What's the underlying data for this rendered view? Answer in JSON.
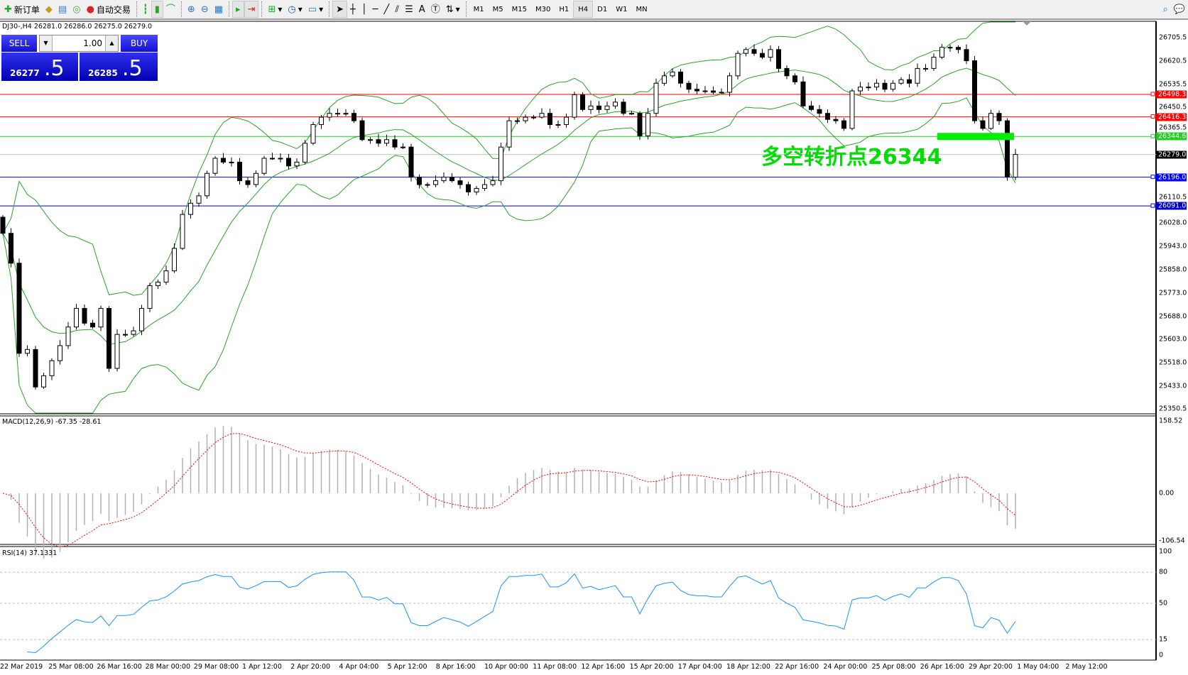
{
  "toolbar": {
    "new_order": "新订单",
    "auto_trading": "自动交易",
    "timeframes": [
      "M1",
      "M5",
      "M15",
      "M30",
      "H1",
      "H4",
      "D1",
      "W1",
      "MN"
    ],
    "active_timeframe": "H4",
    "text_tool": "A"
  },
  "chart": {
    "title": "DJ30-,H4  26281.0 26286.0 26275.0 26279.0",
    "annotation": "多空转折点26344",
    "annotation_color": "#00dd00",
    "one_click": {
      "sell": "SELL",
      "buy": "BUY",
      "lot": "1.00",
      "sell_main": "26277",
      "sell_big": ".5",
      "buy_main": "26285",
      "buy_big": ".5"
    },
    "price_ticks": [
      "26705.5",
      "26620.5",
      "26535.5",
      "26450.5",
      "26365.5",
      "26110.5",
      "26028.0",
      "25943.0",
      "25858.0",
      "25773.0",
      "25688.0",
      "25603.0",
      "25518.0",
      "25433.0",
      "25350.5"
    ],
    "levels": [
      {
        "price": "26498.3",
        "color": "#ff0000"
      },
      {
        "price": "26416.3",
        "color": "#ff0000"
      },
      {
        "price": "26344.6",
        "color": "#22cc22"
      },
      {
        "price": "26279.0",
        "color": "#000000",
        "line": "#c0c0c0"
      },
      {
        "price": "26196.0",
        "color": "#0000ff"
      },
      {
        "price": "26091.0",
        "color": "#0000cc"
      }
    ],
    "time_ticks": [
      "22 Mar 2019",
      "25 Mar 08:00",
      "26 Mar 16:00",
      "28 Mar 00:00",
      "29 Mar 08:00",
      "1 Apr 12:00",
      "2 Apr 20:00",
      "4 Apr 04:00",
      "5 Apr 12:00",
      "8 Apr 16:00",
      "10 Apr 00:00",
      "11 Apr 08:00",
      "12 Apr 16:00",
      "15 Apr 20:00",
      "17 Apr 04:00",
      "18 Apr 12:00",
      "22 Apr 16:00",
      "24 Apr 00:00",
      "25 Apr 08:00",
      "26 Apr 16:00",
      "29 Apr 20:00",
      "1 May 04:00",
      "2 May 12:00"
    ]
  },
  "macd": {
    "title": "MACD(12,26,9) -67.35 -28.61",
    "ticks": [
      "158.52",
      "0.00",
      "-106.54"
    ]
  },
  "rsi": {
    "title": "RSI(14) 37.1331",
    "ticks": [
      "100",
      "80",
      "50",
      "15",
      "0"
    ],
    "color": "#1e90ff"
  },
  "chart_data": {
    "type": "candlestick",
    "symbol": "DJ30-",
    "timeframe": "H4",
    "ylim": [
      25350.5,
      26705.5
    ],
    "first_open": 26050,
    "closes": [
      25991,
      25882,
      25553,
      25567,
      25430,
      25471,
      25526,
      25581,
      25649,
      25717,
      25663,
      25649,
      25717,
      25498,
      25622,
      25622,
      25635,
      25717,
      25800,
      25813,
      25854,
      25936,
      26060,
      26101,
      26128,
      26210,
      26265,
      26251,
      26251,
      26183,
      26169,
      26210,
      26265,
      26265,
      26265,
      26237,
      26251,
      26320,
      26388,
      26415,
      26429,
      26429,
      26429,
      26402,
      26333,
      26333,
      26320,
      26333,
      26306,
      26306,
      26196,
      26169,
      26169,
      26183,
      26196,
      26183,
      26169,
      26142,
      26155,
      26169,
      26183,
      26306,
      26402,
      26402,
      26415,
      26415,
      26429,
      26388,
      26388,
      26415,
      26497,
      26443,
      26456,
      26443,
      26456,
      26470,
      26429,
      26429,
      26347,
      26429,
      26539,
      26566,
      26580,
      26539,
      26517,
      26511,
      26511,
      26506,
      26506,
      26566,
      26648,
      26662,
      26648,
      26634,
      26662,
      26593,
      26566,
      26544,
      26456,
      26443,
      26429,
      26407,
      26402,
      26374,
      26511,
      26525,
      26525,
      26539,
      26517,
      26539,
      26552,
      26539,
      26593,
      26593,
      26634,
      26670,
      26670,
      26662,
      26621,
      26402,
      26374,
      26429,
      26402,
      26196,
      26279
    ]
  }
}
